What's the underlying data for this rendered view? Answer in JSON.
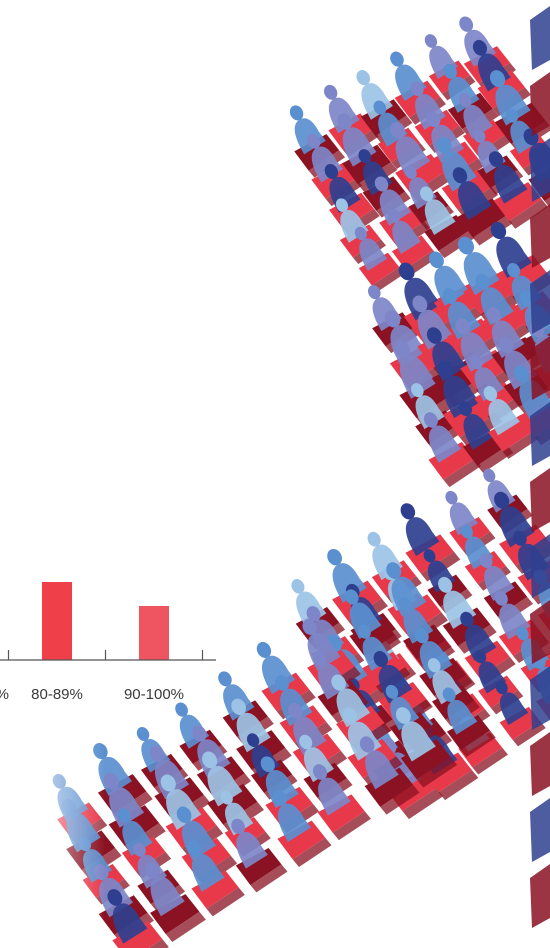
{
  "chart_data": {
    "type": "bar",
    "categories": [
      "…%",
      "80-89%",
      "90-100%"
    ],
    "values": [
      null,
      78,
      54
    ],
    "bar_colors": [
      "#ef4049",
      "#ef4049",
      "#ee5560"
    ],
    "axis_color": "#555555",
    "ylim": [
      0,
      100
    ],
    "grid": false,
    "legend": "none",
    "title": "",
    "xlabel": "",
    "ylabel": ""
  },
  "illustration": {
    "subject": "cinema-audience-seating",
    "colors": {
      "seat_red": "#e8394a",
      "seat_dark": "#8a1222",
      "person_blue": "#5a8fd0",
      "person_violet": "#7d86c8",
      "person_navy": "#2f3f8f",
      "person_light": "#9cc3e6"
    }
  }
}
